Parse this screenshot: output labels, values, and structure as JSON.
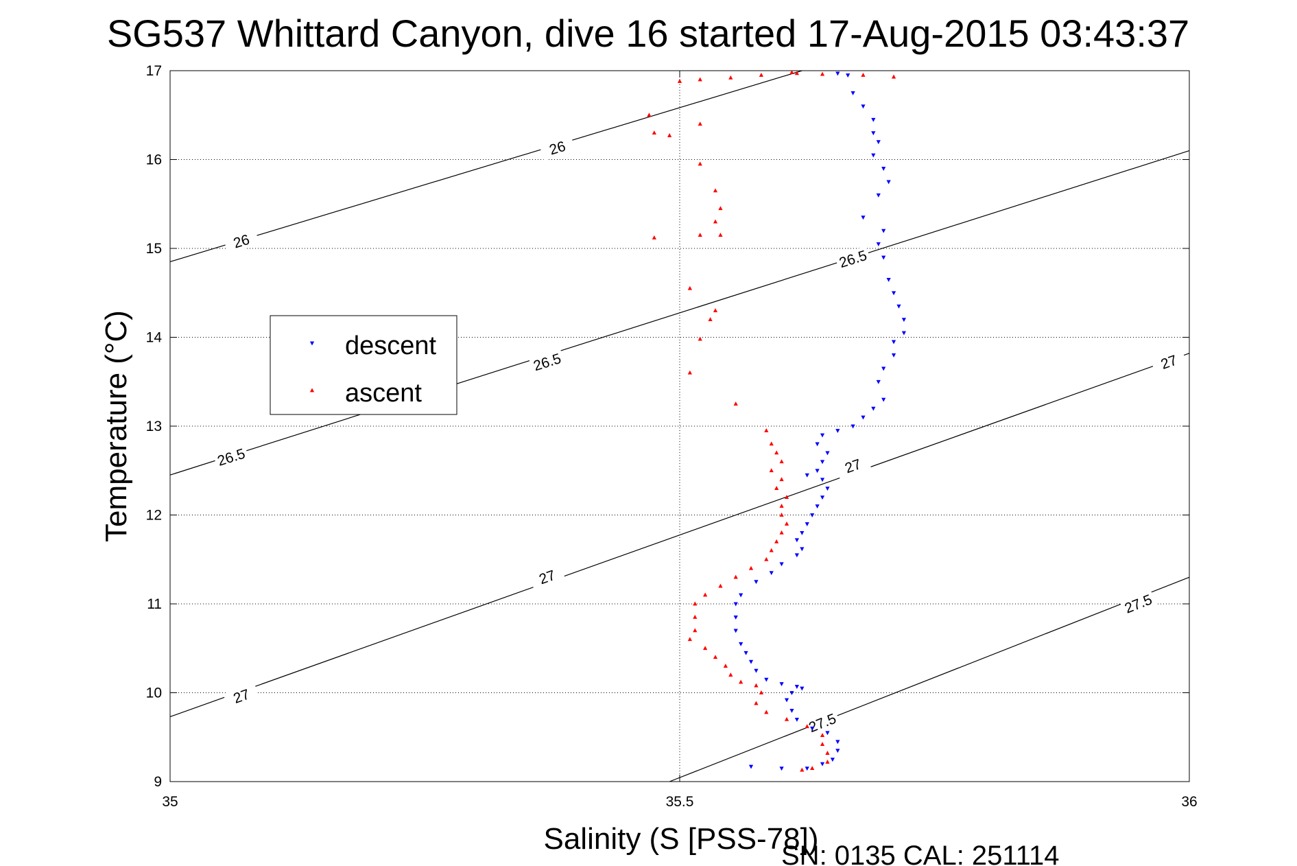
{
  "chart_data": {
    "type": "scatter",
    "title": "SG537 Whittard Canyon, dive 16 started 17-Aug-2015 03:43:37",
    "xlabel": "Salinity (S [PSS-78])",
    "ylabel": "Temperature (°C)",
    "xlim": [
      35,
      36
    ],
    "ylim": [
      9,
      17
    ],
    "x_ticks": [
      "35",
      "35.5",
      "36"
    ],
    "y_ticks": [
      "9",
      "10",
      "11",
      "12",
      "13",
      "14",
      "15",
      "16",
      "17"
    ],
    "grid": true,
    "legend_position": "middle-left",
    "footer": "SN: 0135  CAL: 251114",
    "colors": {
      "descent": "#0000ff",
      "ascent": "#ff0000",
      "contour": "#000000"
    },
    "contours": [
      {
        "label": "26",
        "x": [
          35,
          35.62
        ],
        "y": [
          14.85,
          17.0
        ],
        "label_positions": [
          [
            35.07,
            15.08
          ],
          [
            35.38,
            16.13
          ]
        ]
      },
      {
        "label": "26.5",
        "x": [
          35,
          36
        ],
        "y": [
          12.45,
          16.1
        ],
        "label_positions": [
          [
            35.06,
            12.65
          ],
          [
            35.37,
            13.72
          ],
          [
            35.67,
            14.88
          ]
        ]
      },
      {
        "label": "27",
        "x": [
          35,
          36
        ],
        "y": [
          9.73,
          13.82
        ],
        "label_positions": [
          [
            35.07,
            9.96
          ],
          [
            35.37,
            11.3
          ],
          [
            35.67,
            12.55
          ],
          [
            35.98,
            13.72
          ]
        ]
      },
      {
        "label": "27.5",
        "x": [
          35.49,
          36
        ],
        "y": [
          9.0,
          11.3
        ],
        "label_positions": [
          [
            35.64,
            9.66
          ],
          [
            35.95,
            11.0
          ]
        ]
      }
    ],
    "series": [
      {
        "name": "descent",
        "marker": "triangle-down",
        "points": [
          [
            35.655,
            16.97
          ],
          [
            35.665,
            16.95
          ],
          [
            35.67,
            16.75
          ],
          [
            35.68,
            16.6
          ],
          [
            35.69,
            16.45
          ],
          [
            35.69,
            16.3
          ],
          [
            35.695,
            16.2
          ],
          [
            35.69,
            16.05
          ],
          [
            35.7,
            15.9
          ],
          [
            35.705,
            15.75
          ],
          [
            35.695,
            15.6
          ],
          [
            35.68,
            15.35
          ],
          [
            35.7,
            15.2
          ],
          [
            35.695,
            15.05
          ],
          [
            35.7,
            14.9
          ],
          [
            35.705,
            14.65
          ],
          [
            35.71,
            14.5
          ],
          [
            35.715,
            14.35
          ],
          [
            35.72,
            14.2
          ],
          [
            35.72,
            14.05
          ],
          [
            35.71,
            13.95
          ],
          [
            35.71,
            13.8
          ],
          [
            35.7,
            13.65
          ],
          [
            35.695,
            13.5
          ],
          [
            35.7,
            13.3
          ],
          [
            35.69,
            13.2
          ],
          [
            35.68,
            13.1
          ],
          [
            35.67,
            13.0
          ],
          [
            35.655,
            12.95
          ],
          [
            35.64,
            12.9
          ],
          [
            35.635,
            12.8
          ],
          [
            35.645,
            12.7
          ],
          [
            35.64,
            12.6
          ],
          [
            35.635,
            12.5
          ],
          [
            35.625,
            12.45
          ],
          [
            35.64,
            12.4
          ],
          [
            35.645,
            12.3
          ],
          [
            35.64,
            12.2
          ],
          [
            35.635,
            12.1
          ],
          [
            35.63,
            12.0
          ],
          [
            35.625,
            11.9
          ],
          [
            35.62,
            11.8
          ],
          [
            35.615,
            11.72
          ],
          [
            35.62,
            11.62
          ],
          [
            35.615,
            11.55
          ],
          [
            35.6,
            11.45
          ],
          [
            35.59,
            11.35
          ],
          [
            35.575,
            11.25
          ],
          [
            35.56,
            11.1
          ],
          [
            35.555,
            11.0
          ],
          [
            35.555,
            10.85
          ],
          [
            35.555,
            10.7
          ],
          [
            35.56,
            10.55
          ],
          [
            35.565,
            10.45
          ],
          [
            35.57,
            10.35
          ],
          [
            35.575,
            10.25
          ],
          [
            35.585,
            10.15
          ],
          [
            35.6,
            10.1
          ],
          [
            35.615,
            10.07
          ],
          [
            35.62,
            10.05
          ],
          [
            35.61,
            10.0
          ],
          [
            35.605,
            9.92
          ],
          [
            35.61,
            9.8
          ],
          [
            35.615,
            9.7
          ],
          [
            35.63,
            9.6
          ],
          [
            35.645,
            9.55
          ],
          [
            35.655,
            9.45
          ],
          [
            35.655,
            9.35
          ],
          [
            35.65,
            9.25
          ],
          [
            35.64,
            9.2
          ],
          [
            35.625,
            9.15
          ],
          [
            35.6,
            9.15
          ],
          [
            35.57,
            9.17
          ]
        ]
      },
      {
        "name": "ascent",
        "marker": "triangle-up",
        "points": [
          [
            35.61,
            16.98
          ],
          [
            35.615,
            16.97
          ],
          [
            35.58,
            16.95
          ],
          [
            35.64,
            16.96
          ],
          [
            35.68,
            16.95
          ],
          [
            35.71,
            16.93
          ],
          [
            35.55,
            16.92
          ],
          [
            35.52,
            16.9
          ],
          [
            35.5,
            16.88
          ],
          [
            35.47,
            16.5
          ],
          [
            35.475,
            16.3
          ],
          [
            35.52,
            16.4
          ],
          [
            35.49,
            16.27
          ],
          [
            35.52,
            15.95
          ],
          [
            35.535,
            15.65
          ],
          [
            35.54,
            15.45
          ],
          [
            35.535,
            15.3
          ],
          [
            35.54,
            15.15
          ],
          [
            35.52,
            15.15
          ],
          [
            35.475,
            15.12
          ],
          [
            35.51,
            14.55
          ],
          [
            35.535,
            14.3
          ],
          [
            35.53,
            14.2
          ],
          [
            35.52,
            13.98
          ],
          [
            35.51,
            13.6
          ],
          [
            35.555,
            13.25
          ],
          [
            35.585,
            12.95
          ],
          [
            35.59,
            12.8
          ],
          [
            35.595,
            12.7
          ],
          [
            35.6,
            12.6
          ],
          [
            35.59,
            12.5
          ],
          [
            35.6,
            12.4
          ],
          [
            35.595,
            12.3
          ],
          [
            35.605,
            12.2
          ],
          [
            35.6,
            12.1
          ],
          [
            35.6,
            12.0
          ],
          [
            35.605,
            11.9
          ],
          [
            35.6,
            11.8
          ],
          [
            35.595,
            11.7
          ],
          [
            35.59,
            11.6
          ],
          [
            35.585,
            11.5
          ],
          [
            35.57,
            11.4
          ],
          [
            35.555,
            11.3
          ],
          [
            35.54,
            11.2
          ],
          [
            35.525,
            11.1
          ],
          [
            35.515,
            11.0
          ],
          [
            35.515,
            10.85
          ],
          [
            35.515,
            10.7
          ],
          [
            35.51,
            10.6
          ],
          [
            35.525,
            10.5
          ],
          [
            35.535,
            10.4
          ],
          [
            35.545,
            10.3
          ],
          [
            35.55,
            10.2
          ],
          [
            35.56,
            10.12
          ],
          [
            35.575,
            10.08
          ],
          [
            35.58,
            10.0
          ],
          [
            35.575,
            9.88
          ],
          [
            35.585,
            9.78
          ],
          [
            35.605,
            9.7
          ],
          [
            35.625,
            9.62
          ],
          [
            35.64,
            9.52
          ],
          [
            35.64,
            9.42
          ],
          [
            35.645,
            9.32
          ],
          [
            35.645,
            9.22
          ],
          [
            35.63,
            9.15
          ],
          [
            35.62,
            9.13
          ]
        ]
      }
    ]
  }
}
